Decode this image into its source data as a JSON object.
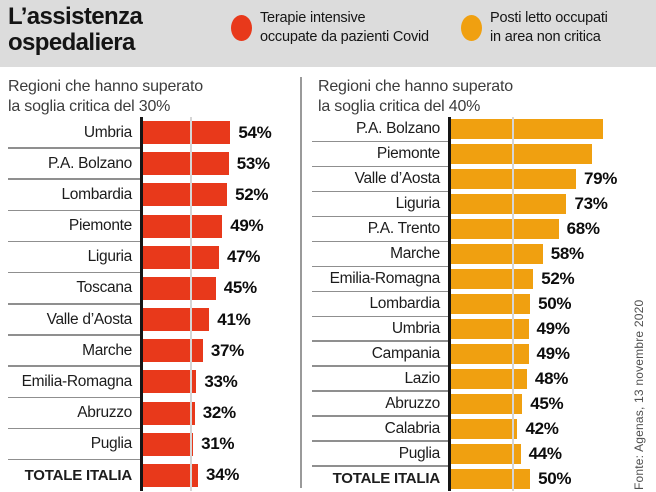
{
  "header": {
    "title_lines": [
      "L’assistenza",
      "ospedaliera"
    ],
    "legend": [
      {
        "name": "icu-covid",
        "color": "#e8391b",
        "lines": [
          "Terapie intensive",
          "occupate da pazienti Covid"
        ]
      },
      {
        "name": "non-critical-beds",
        "color": "#f0a010",
        "lines": [
          "Posti letto occupati",
          "in area non critica"
        ]
      }
    ]
  },
  "source_note": "Fonte: Agenas, 13 novembre 2020",
  "chart_data": [
    {
      "type": "bar",
      "orientation": "horizontal",
      "title": "Regioni che hanno superato la soglia critica del 30%",
      "title_lines": [
        "Regioni che hanno superato",
        "la soglia critica del 30%"
      ],
      "series_name": "Terapie intensive occupate da pazienti Covid",
      "bar_color": "#e8391b",
      "threshold_pct": 30,
      "xlim": [
        0,
        105
      ],
      "grid": false,
      "categories": [
        "Umbria",
        "P.A. Bolzano",
        "Lombardia",
        "Piemonte",
        "Liguria",
        "Toscana",
        "Valle d’Aosta",
        "Marche",
        "Emilia-Romagna",
        "Abruzzo",
        "Puglia",
        "TOTALE ITALIA"
      ],
      "values": [
        54,
        53,
        52,
        49,
        47,
        45,
        41,
        37,
        33,
        32,
        31,
        34
      ],
      "value_labels": [
        "54%",
        "53%",
        "52%",
        "49%",
        "47%",
        "45%",
        "41%",
        "37%",
        "33%",
        "32%",
        "31%",
        "34%"
      ]
    },
    {
      "type": "bar",
      "orientation": "horizontal",
      "title": "Regioni che hanno superato la soglia critica del 40%",
      "title_lines": [
        "Regioni che hanno superato",
        "la soglia critica del 40%"
      ],
      "series_name": "Posti letto occupati in area non critica",
      "bar_color": "#f0a010",
      "threshold_pct": 40,
      "xlim": [
        0,
        100
      ],
      "grid": false,
      "categories": [
        "P.A. Bolzano",
        "Piemonte",
        "Valle d’Aosta",
        "Liguria",
        "P.A. Trento",
        "Marche",
        "Emilia-Romagna",
        "Lombardia",
        "Umbria",
        "Campania",
        "Lazio",
        "Abruzzo",
        "Calabria",
        "Puglia",
        "TOTALE ITALIA"
      ],
      "values": [
        96,
        89,
        79,
        73,
        68,
        58,
        52,
        50,
        49,
        49,
        48,
        45,
        42,
        44,
        50
      ],
      "value_labels": [
        "",
        "",
        "79%",
        "73%",
        "68%",
        "58%",
        "52%",
        "50%",
        "49%",
        "49%",
        "48%",
        "45%",
        "42%",
        "44%",
        "50%"
      ]
    }
  ]
}
